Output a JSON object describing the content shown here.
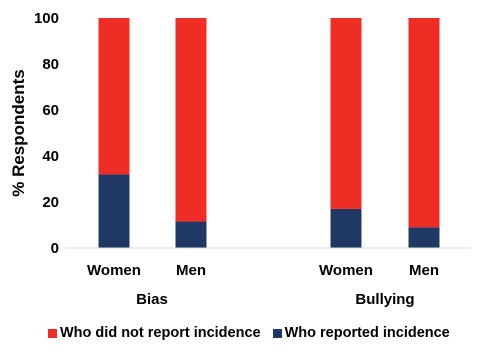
{
  "chart_data": {
    "type": "bar",
    "stacked": true,
    "ylabel": "% Respondents",
    "ylim": [
      0,
      100
    ],
    "yticks": [
      0,
      20,
      40,
      60,
      80,
      100
    ],
    "groups": [
      {
        "label": "Bias",
        "categories": [
          "Women",
          "Men"
        ]
      },
      {
        "label": "Bullying",
        "categories": [
          "Women",
          "Men"
        ]
      }
    ],
    "categories": [
      "Women",
      "Men",
      "Women",
      "Men"
    ],
    "series": [
      {
        "name": "Who reported incidence",
        "color": "#1f3864",
        "values": [
          32,
          11.5,
          17,
          9
        ]
      },
      {
        "name": "Who did not report incidence",
        "color": "#ee2e24",
        "values": [
          68,
          88.5,
          83,
          91
        ]
      }
    ],
    "legend_position": "bottom",
    "legend_order": [
      "Who did not report incidence",
      "Who reported incidence"
    ],
    "grid": false
  }
}
